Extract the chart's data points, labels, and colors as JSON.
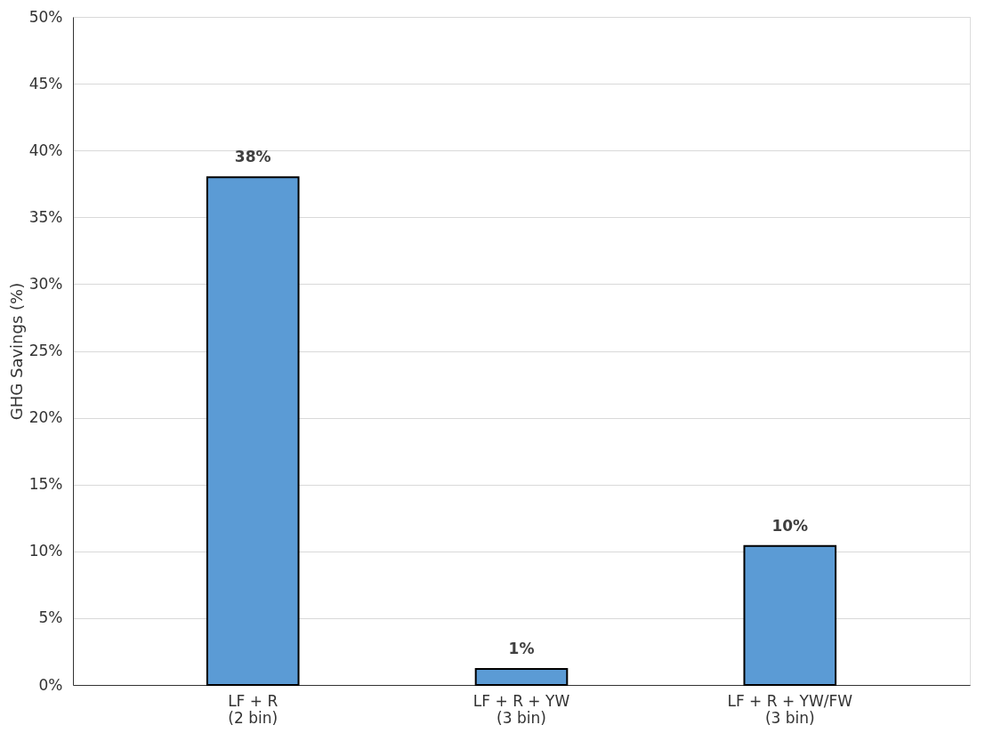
{
  "chart_data": {
    "type": "bar",
    "ylabel": "GHG Savings (%)",
    "categories": [
      "LF + R\n(2 bin)",
      "LF + R + YW\n(3 bin)",
      "LF + R + YW/FW\n(3 bin)"
    ],
    "values": [
      38,
      1.2,
      10.4
    ],
    "value_labels": [
      "38%",
      "1%",
      "10%"
    ],
    "color": "#5b9bd5",
    "ylim": [
      0,
      50
    ],
    "yticks": [
      {
        "value": 0,
        "label": "0%"
      },
      {
        "value": 5,
        "label": "5%"
      },
      {
        "value": 10,
        "label": "10%"
      },
      {
        "value": 15,
        "label": "15%"
      },
      {
        "value": 20,
        "label": "20%"
      },
      {
        "value": 25,
        "label": "25%"
      },
      {
        "value": 30,
        "label": "30%"
      },
      {
        "value": 35,
        "label": "35%"
      },
      {
        "value": 40,
        "label": "40%"
      },
      {
        "value": 45,
        "label": "45%"
      },
      {
        "value": 50,
        "label": "50%"
      }
    ],
    "grid": "y"
  }
}
